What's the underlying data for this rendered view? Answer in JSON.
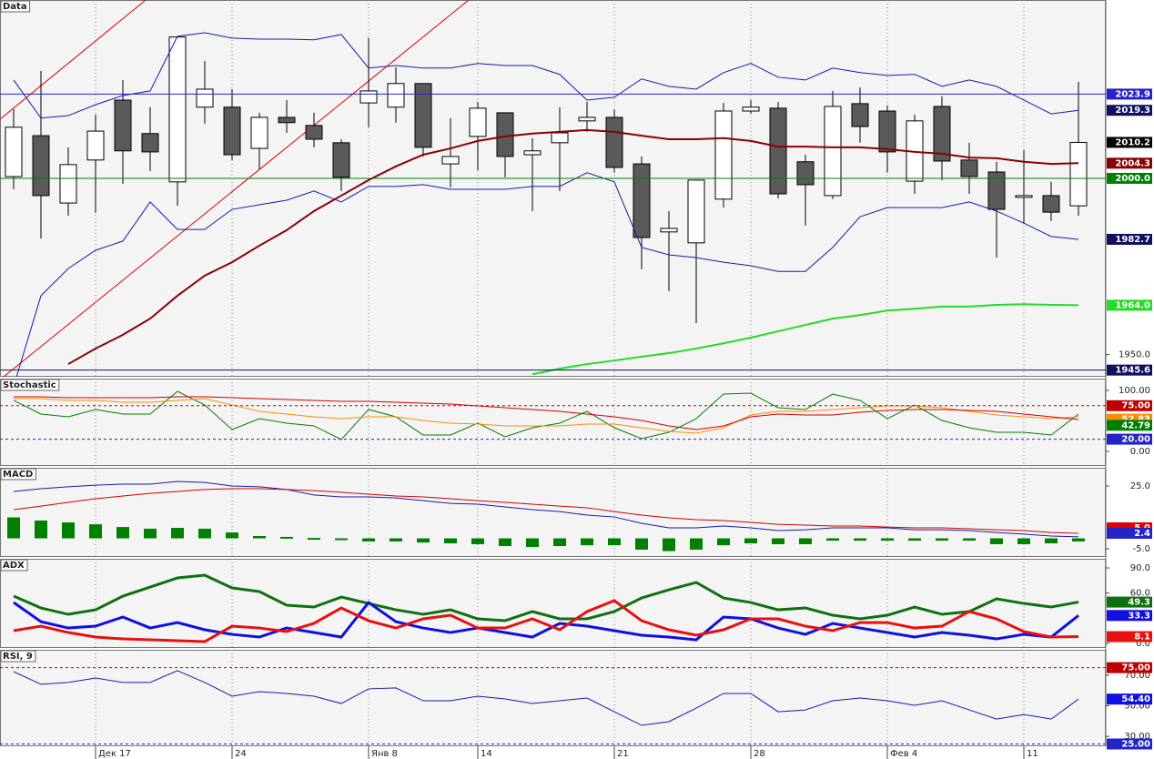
{
  "chart_data": [
    {
      "type": "candlestick",
      "title": "Data",
      "categories": [
        null,
        null,
        null,
        "Дек 17",
        null,
        null,
        null,
        null,
        "24",
        null,
        null,
        null,
        null,
        "Янв 8",
        null,
        null,
        null,
        "14",
        null,
        null,
        null,
        null,
        "21",
        null,
        null,
        null,
        null,
        "28",
        null,
        null,
        null,
        null,
        "Фев 4",
        null,
        null,
        null,
        null,
        "11",
        null,
        null
      ],
      "open": [
        2000.5,
        2012.1,
        1993.0,
        2005.2,
        2022.2,
        2012.7,
        1999.0,
        2020.2,
        2020.2,
        2008.5,
        2017.3,
        2015.0,
        2010.1,
        2021.4,
        2020.2,
        2026.9,
        2004.1,
        2011.9,
        2018.6,
        2006.7,
        2010.1,
        2016.3,
        2017.3,
        2004.1,
        1984.8,
        1981.7,
        1994.1,
        2019.1,
        2019.9,
        2004.7,
        1995.1,
        2021.2,
        2019.1,
        1999.2,
        2020.4,
        2005.2,
        2001.8,
        1994.6,
        1995.1,
        1992.2
      ],
      "high": [
        2019.6,
        2030.5,
        2008.8,
        2018.1,
        2027.9,
        2020.2,
        2040.1,
        2033.3,
        2025.3,
        2018.6,
        2022.2,
        2018.6,
        2011.1,
        2039.8,
        2031.5,
        2026.9,
        2017.1,
        2021.7,
        2018.6,
        2011.4,
        2020.2,
        2021.7,
        2019.6,
        2006.2,
        1990.7,
        1999.5,
        2021.4,
        2022.2,
        2021.7,
        2006.7,
        2024.8,
        2025.8,
        2020.7,
        2018.1,
        2023.3,
        2010.1,
        2004.7,
        2008.0,
        1999.0,
        2027.4
      ],
      "low": [
        1996.9,
        1982.9,
        1989.4,
        1990.2,
        1998.4,
        2002.1,
        1992.2,
        2015.5,
        2005.2,
        2002.6,
        2012.9,
        2008.8,
        1996.4,
        2014.5,
        2015.8,
        2006.2,
        1997.4,
        2002.3,
        2000.3,
        1990.7,
        1996.4,
        2013.2,
        2001.6,
        1974.2,
        1968.0,
        1958.9,
        1991.7,
        2018.3,
        1994.3,
        1986.6,
        1994.1,
        2010.1,
        2001.6,
        1995.6,
        1999.5,
        1995.6,
        1977.5,
        1987.1,
        1987.9,
        1989.4
      ],
      "close": [
        2014.5,
        1995.1,
        2003.9,
        2013.4,
        2007.8,
        2007.5,
        2040.1,
        2025.3,
        2006.7,
        2017.3,
        2015.8,
        2011.1,
        2000.3,
        2024.8,
        2026.9,
        2008.8,
        2006.2,
        2019.9,
        2006.2,
        2007.8,
        2012.9,
        2017.3,
        2003.1,
        1983.2,
        1985.8,
        1999.5,
        2019.1,
        2020.2,
        1995.6,
        1998.2,
        2020.4,
        2014.7,
        2007.5,
        2016.3,
        2004.9,
        2000.5,
        1991.2,
        1995.1,
        1990.4,
        2010.2
      ],
      "up_color": "#ffffff",
      "down_color": "#5a5a5a",
      "series": [
        {
          "color": "#1a1aa8",
          "width": 1,
          "values": [
            2027.9,
            2017.1,
            2017.8,
            2020.9,
            2023.5,
            2024.8,
            2040.3,
            2041.3,
            2039.8,
            2039.5,
            2039.5,
            2039.3,
            2040.8,
            2031.3,
            2032.0,
            2031.3,
            2031.3,
            2032.6,
            2032.0,
            2032.0,
            2029.5,
            2022.2,
            2023.0,
            2028.2,
            2026.1,
            2025.3,
            2030.0,
            2032.6,
            2028.7,
            2027.9,
            2031.3,
            2030.0,
            2029.2,
            2029.5,
            2026.1,
            2027.9,
            2026.1,
            2022.2,
            2018.3,
            2019.3
          ]
        },
        {
          "color": "#1a1aa8",
          "width": 1,
          "values": [
            1941.0,
            1966.7,
            1974.4,
            1979.6,
            1982.2,
            1993.3,
            1985.5,
            1985.5,
            1991.2,
            1992.5,
            1993.8,
            1996.4,
            1993.3,
            1997.7,
            1997.7,
            1998.2,
            1996.9,
            1996.9,
            1996.9,
            1997.7,
            1997.7,
            2001.6,
            1999.0,
            1980.4,
            1978.3,
            1977.5,
            1976.2,
            1975.2,
            1973.6,
            1973.6,
            1980.4,
            1989.1,
            1991.7,
            1991.7,
            1991.7,
            1993.3,
            1990.7,
            1987.3,
            1983.5,
            1982.7
          ]
        },
        {
          "color": "#8b0000",
          "width": 2,
          "values": [
            null,
            null,
            1947.3,
            1951.7,
            1955.6,
            1960.2,
            1966.7,
            1972.4,
            1976.2,
            1980.9,
            1985.3,
            1990.7,
            1995.1,
            1999.5,
            2003.4,
            2006.7,
            2008.5,
            2010.6,
            2011.9,
            2012.7,
            2013.2,
            2013.7,
            2013.2,
            2012.1,
            2011.1,
            2011.1,
            2011.4,
            2010.6,
            2009.0,
            2009.0,
            2008.8,
            2008.8,
            2008.3,
            2007.5,
            2007.0,
            2005.9,
            2005.7,
            2004.7,
            2004.1,
            2004.3
          ]
        },
        {
          "color": "#22dd22",
          "width": 2,
          "values": [
            null,
            null,
            null,
            null,
            null,
            null,
            null,
            null,
            null,
            null,
            null,
            null,
            null,
            null,
            null,
            null,
            null,
            null,
            null,
            1944.4,
            1946.0,
            1947.3,
            1948.3,
            1949.4,
            1950.4,
            1951.7,
            1953.2,
            1954.8,
            1956.6,
            1958.4,
            1960.2,
            1961.2,
            1962.5,
            1963.0,
            1963.6,
            1963.6,
            1964.1,
            1964.3,
            1964.1,
            1964.0
          ]
        }
      ],
      "ylim": [
        1943.7,
        2050.6
      ],
      "yticks": [
        {
          "value": 1950,
          "label": "1950.0"
        }
      ],
      "tags": [
        {
          "value": 2023.9,
          "label": "2023.9",
          "color": "#2424c8",
          "line": "solid"
        },
        {
          "value": 2019.3,
          "label": "2019.3",
          "color": "#10105e"
        },
        {
          "value": 2010.2,
          "label": "2010.2",
          "color": "#000000"
        },
        {
          "value": 2004.3,
          "label": "2004.3",
          "color": "#8b0000"
        },
        {
          "value": 2000,
          "label": "2000.0",
          "color": "#008000",
          "line": "solid"
        },
        {
          "value": 1982.7,
          "label": "1982.7",
          "color": "#10105e"
        },
        {
          "value": 1964,
          "label": "1964.0",
          "color": "#22dd22"
        },
        {
          "value": 1945.6,
          "label": "1945.6",
          "color": "#10105e",
          "line": "solid"
        }
      ]
    },
    {
      "type": "line",
      "title": "Stochastic",
      "series": [
        {
          "color": "#008000",
          "width": 1,
          "values": [
            83.6,
            61.2,
            56.7,
            68.7,
            61.2,
            61.2,
            98.5,
            76.1,
            35.8,
            53.7,
            46.3,
            41.8,
            19.4,
            68.7,
            56.7,
            26.9,
            26.9,
            46.3,
            23.9,
            38.8,
            46.3,
            65.7,
            38.8,
            20.9,
            31.3,
            53.7,
            94.0,
            95.5,
            71.6,
            68.7,
            94.0,
            83.6,
            53.7,
            76.1,
            50.7,
            38.8,
            31.3,
            31.3,
            26.9,
            61.2
          ]
        },
        {
          "color": "#ff8c00",
          "width": 1,
          "values": [
            86.6,
            86.6,
            83.6,
            83.6,
            80.6,
            80.6,
            83.6,
            86.6,
            76.1,
            65.7,
            61.2,
            56.7,
            53.7,
            56.7,
            56.7,
            50.7,
            46.3,
            44.8,
            41.8,
            41.8,
            41.8,
            44.8,
            44.8,
            38.8,
            32.8,
            29.9,
            38.8,
            59.7,
            65.7,
            65.7,
            68.7,
            71.6,
            74.6,
            74.6,
            71.6,
            65.7,
            59.7,
            56.7,
            53.7,
            56.7
          ]
        },
        {
          "color": "#d00000",
          "width": 1,
          "values": [
            89.6,
            89.6,
            88.1,
            88.1,
            88.1,
            88.1,
            89.6,
            89.6,
            88.1,
            86.6,
            85.1,
            83.6,
            82.1,
            82.1,
            80.6,
            79.1,
            77.6,
            74.6,
            71.6,
            68.7,
            65.7,
            61.2,
            56.7,
            50.7,
            41.8,
            35.8,
            41.8,
            56.7,
            61.2,
            59.7,
            59.7,
            64.2,
            67.2,
            68.7,
            68.7,
            67.2,
            65.7,
            61.2,
            56.7,
            52.2
          ]
        }
      ],
      "ylim": [
        -23.9,
        119.4
      ],
      "yticks": [
        {
          "value": 100,
          "label": "100.00"
        },
        {
          "value": 0,
          "label": "0.00"
        }
      ],
      "tags": [
        {
          "value": 75,
          "label": "75.00",
          "color": "#c00000",
          "line": "dotted"
        },
        {
          "value": 52.83,
          "label": "52.83",
          "color": "#ff8c00"
        },
        {
          "value": 42.79,
          "label": "42.79",
          "color": "#008000"
        },
        {
          "value": 20,
          "label": "20.00",
          "color": "#2424c8",
          "line": "dotted"
        }
      ]
    },
    {
      "type": "line",
      "title": "MACD",
      "series": [
        {
          "color": "#008000",
          "style": "histogram",
          "values": [
            10.0,
            8.5,
            7.6,
            6.7,
            5.4,
            4.6,
            5.0,
            4.6,
            2.8,
            1.1,
            0.7,
            0.2,
            -0.4,
            -1.5,
            -1.5,
            -2.0,
            -2.4,
            -2.8,
            -3.7,
            -4.1,
            -3.7,
            -3.3,
            -3.3,
            -5.4,
            -6.1,
            -5.4,
            -3.3,
            -2.4,
            -2.8,
            -2.8,
            -1.1,
            -1.1,
            -1.1,
            -1.1,
            -1.1,
            -1.1,
            -2.8,
            -2.8,
            -2.4,
            -1.5
          ]
        },
        {
          "color": "#1a1aa8",
          "width": 1,
          "values": [
            22.4,
            23.7,
            24.6,
            25.4,
            25.9,
            25.9,
            27.2,
            26.7,
            25.0,
            24.6,
            23.3,
            20.7,
            19.8,
            19.8,
            19.3,
            18.0,
            16.7,
            16.3,
            15.0,
            13.7,
            12.8,
            11.1,
            10.2,
            7.2,
            5.0,
            5.0,
            5.9,
            5.0,
            3.7,
            4.1,
            5.0,
            5.0,
            5.0,
            4.1,
            4.1,
            3.7,
            2.8,
            2.0,
            1.1,
            0.7
          ]
        },
        {
          "color": "#d00000",
          "width": 1,
          "values": [
            13.7,
            15.4,
            17.2,
            18.9,
            20.2,
            21.5,
            22.4,
            23.3,
            23.7,
            23.7,
            23.3,
            22.8,
            22.0,
            21.1,
            20.2,
            19.8,
            18.9,
            18.0,
            17.2,
            16.3,
            15.4,
            14.6,
            12.8,
            11.1,
            9.8,
            8.9,
            8.5,
            7.6,
            6.7,
            6.3,
            5.9,
            5.9,
            5.4,
            5.0,
            5.0,
            4.6,
            4.1,
            3.7,
            2.8,
            2.4
          ]
        }
      ],
      "ylim": [
        -8.9,
        33.7
      ],
      "yticks": [
        {
          "value": 25,
          "label": "25.0"
        },
        {
          "value": -5,
          "label": "-5.0"
        }
      ],
      "tags": [
        {
          "value": 5,
          "label": "5.0",
          "color": "#e00000"
        },
        {
          "value": 2.4,
          "label": "2.4",
          "color": "#2424c8"
        }
      ]
    },
    {
      "type": "line",
      "title": "ADX",
      "series": [
        {
          "color": "#107010",
          "width": 3,
          "values": [
            56.4,
            42.3,
            34.7,
            40.1,
            56.4,
            67.2,
            78.1,
            81.3,
            66.2,
            61.8,
            45.6,
            43.4,
            55.3,
            47.7,
            40.1,
            34.7,
            40.1,
            29.3,
            27.1,
            38.0,
            29.3,
            29.3,
            38.0,
            54.2,
            64.0,
            72.7,
            54.2,
            48.8,
            40.1,
            42.3,
            33.6,
            29.3,
            33.6,
            43.4,
            34.7,
            38.0,
            53.1,
            47.7,
            43.4,
            49.3
          ]
        },
        {
          "color": "#1010e0",
          "width": 3,
          "values": [
            48.8,
            26.0,
            18.4,
            20.6,
            31.5,
            18.4,
            24.9,
            16.3,
            10.8,
            7.6,
            18.4,
            13.0,
            7.6,
            48.8,
            26.0,
            18.4,
            13.0,
            18.4,
            13.0,
            7.6,
            23.9,
            20.6,
            15.2,
            9.8,
            7.6,
            4.3,
            31.5,
            29.3,
            18.4,
            10.8,
            23.9,
            18.4,
            13.0,
            7.6,
            13.0,
            9.8,
            5.4,
            10.8,
            7.6,
            33.3
          ]
        },
        {
          "color": "#e81010",
          "width": 3,
          "values": [
            15.2,
            20.6,
            13.0,
            7.6,
            5.4,
            4.3,
            3.3,
            2.2,
            20.6,
            18.4,
            14.1,
            23.9,
            42.3,
            27.1,
            18.4,
            29.3,
            33.6,
            18.4,
            18.4,
            29.3,
            16.3,
            38.0,
            51.0,
            27.1,
            16.3,
            9.8,
            16.3,
            29.3,
            29.3,
            20.6,
            15.2,
            24.9,
            24.9,
            18.4,
            20.6,
            38.0,
            29.3,
            14.1,
            7.6,
            8.1
          ]
        }
      ],
      "ylim": [
        -5.4,
        100.9
      ],
      "yticks": [
        {
          "value": 90,
          "label": "90.0"
        },
        {
          "value": 60,
          "label": "60.0"
        },
        {
          "value": 0,
          "label": "0.0"
        }
      ],
      "tags": [
        {
          "value": 49.3,
          "label": "49.3",
          "color": "#107010"
        },
        {
          "value": 33.3,
          "label": "33.3",
          "color": "#1010e0"
        },
        {
          "value": 8.1,
          "label": "8.1",
          "color": "#e81010"
        }
      ]
    },
    {
      "type": "line",
      "title": "RSI, 9",
      "series": [
        {
          "color": "#1a1aa8",
          "width": 1,
          "values": [
            72.4,
            64.1,
            65.3,
            68.2,
            65.3,
            65.3,
            73.0,
            65.3,
            56.3,
            59.3,
            58.1,
            56.3,
            51.5,
            61.1,
            61.7,
            53.3,
            53.3,
            56.3,
            54.5,
            51.5,
            53.3,
            55.1,
            46.1,
            37.2,
            39.6,
            48.5,
            58.1,
            58.1,
            46.1,
            47.3,
            53.3,
            55.1,
            53.3,
            50.3,
            53.3,
            47.3,
            41.3,
            44.3,
            41.3,
            54.4
          ]
        }
      ],
      "ylim": [
        23.5,
        86.7
      ],
      "yticks": [
        {
          "value": 70,
          "label": "70.00"
        },
        {
          "value": 50,
          "label": "50.00"
        },
        {
          "value": 30,
          "label": "30.00"
        }
      ],
      "tags": [
        {
          "value": 75,
          "label": "75.00",
          "color": "#c00000",
          "line": "dotted"
        },
        {
          "value": 54.4,
          "label": "54.40",
          "color": "#1010e0"
        },
        {
          "value": 25,
          "label": "25.00",
          "color": "#2424c8",
          "line": "dotted"
        }
      ]
    }
  ]
}
